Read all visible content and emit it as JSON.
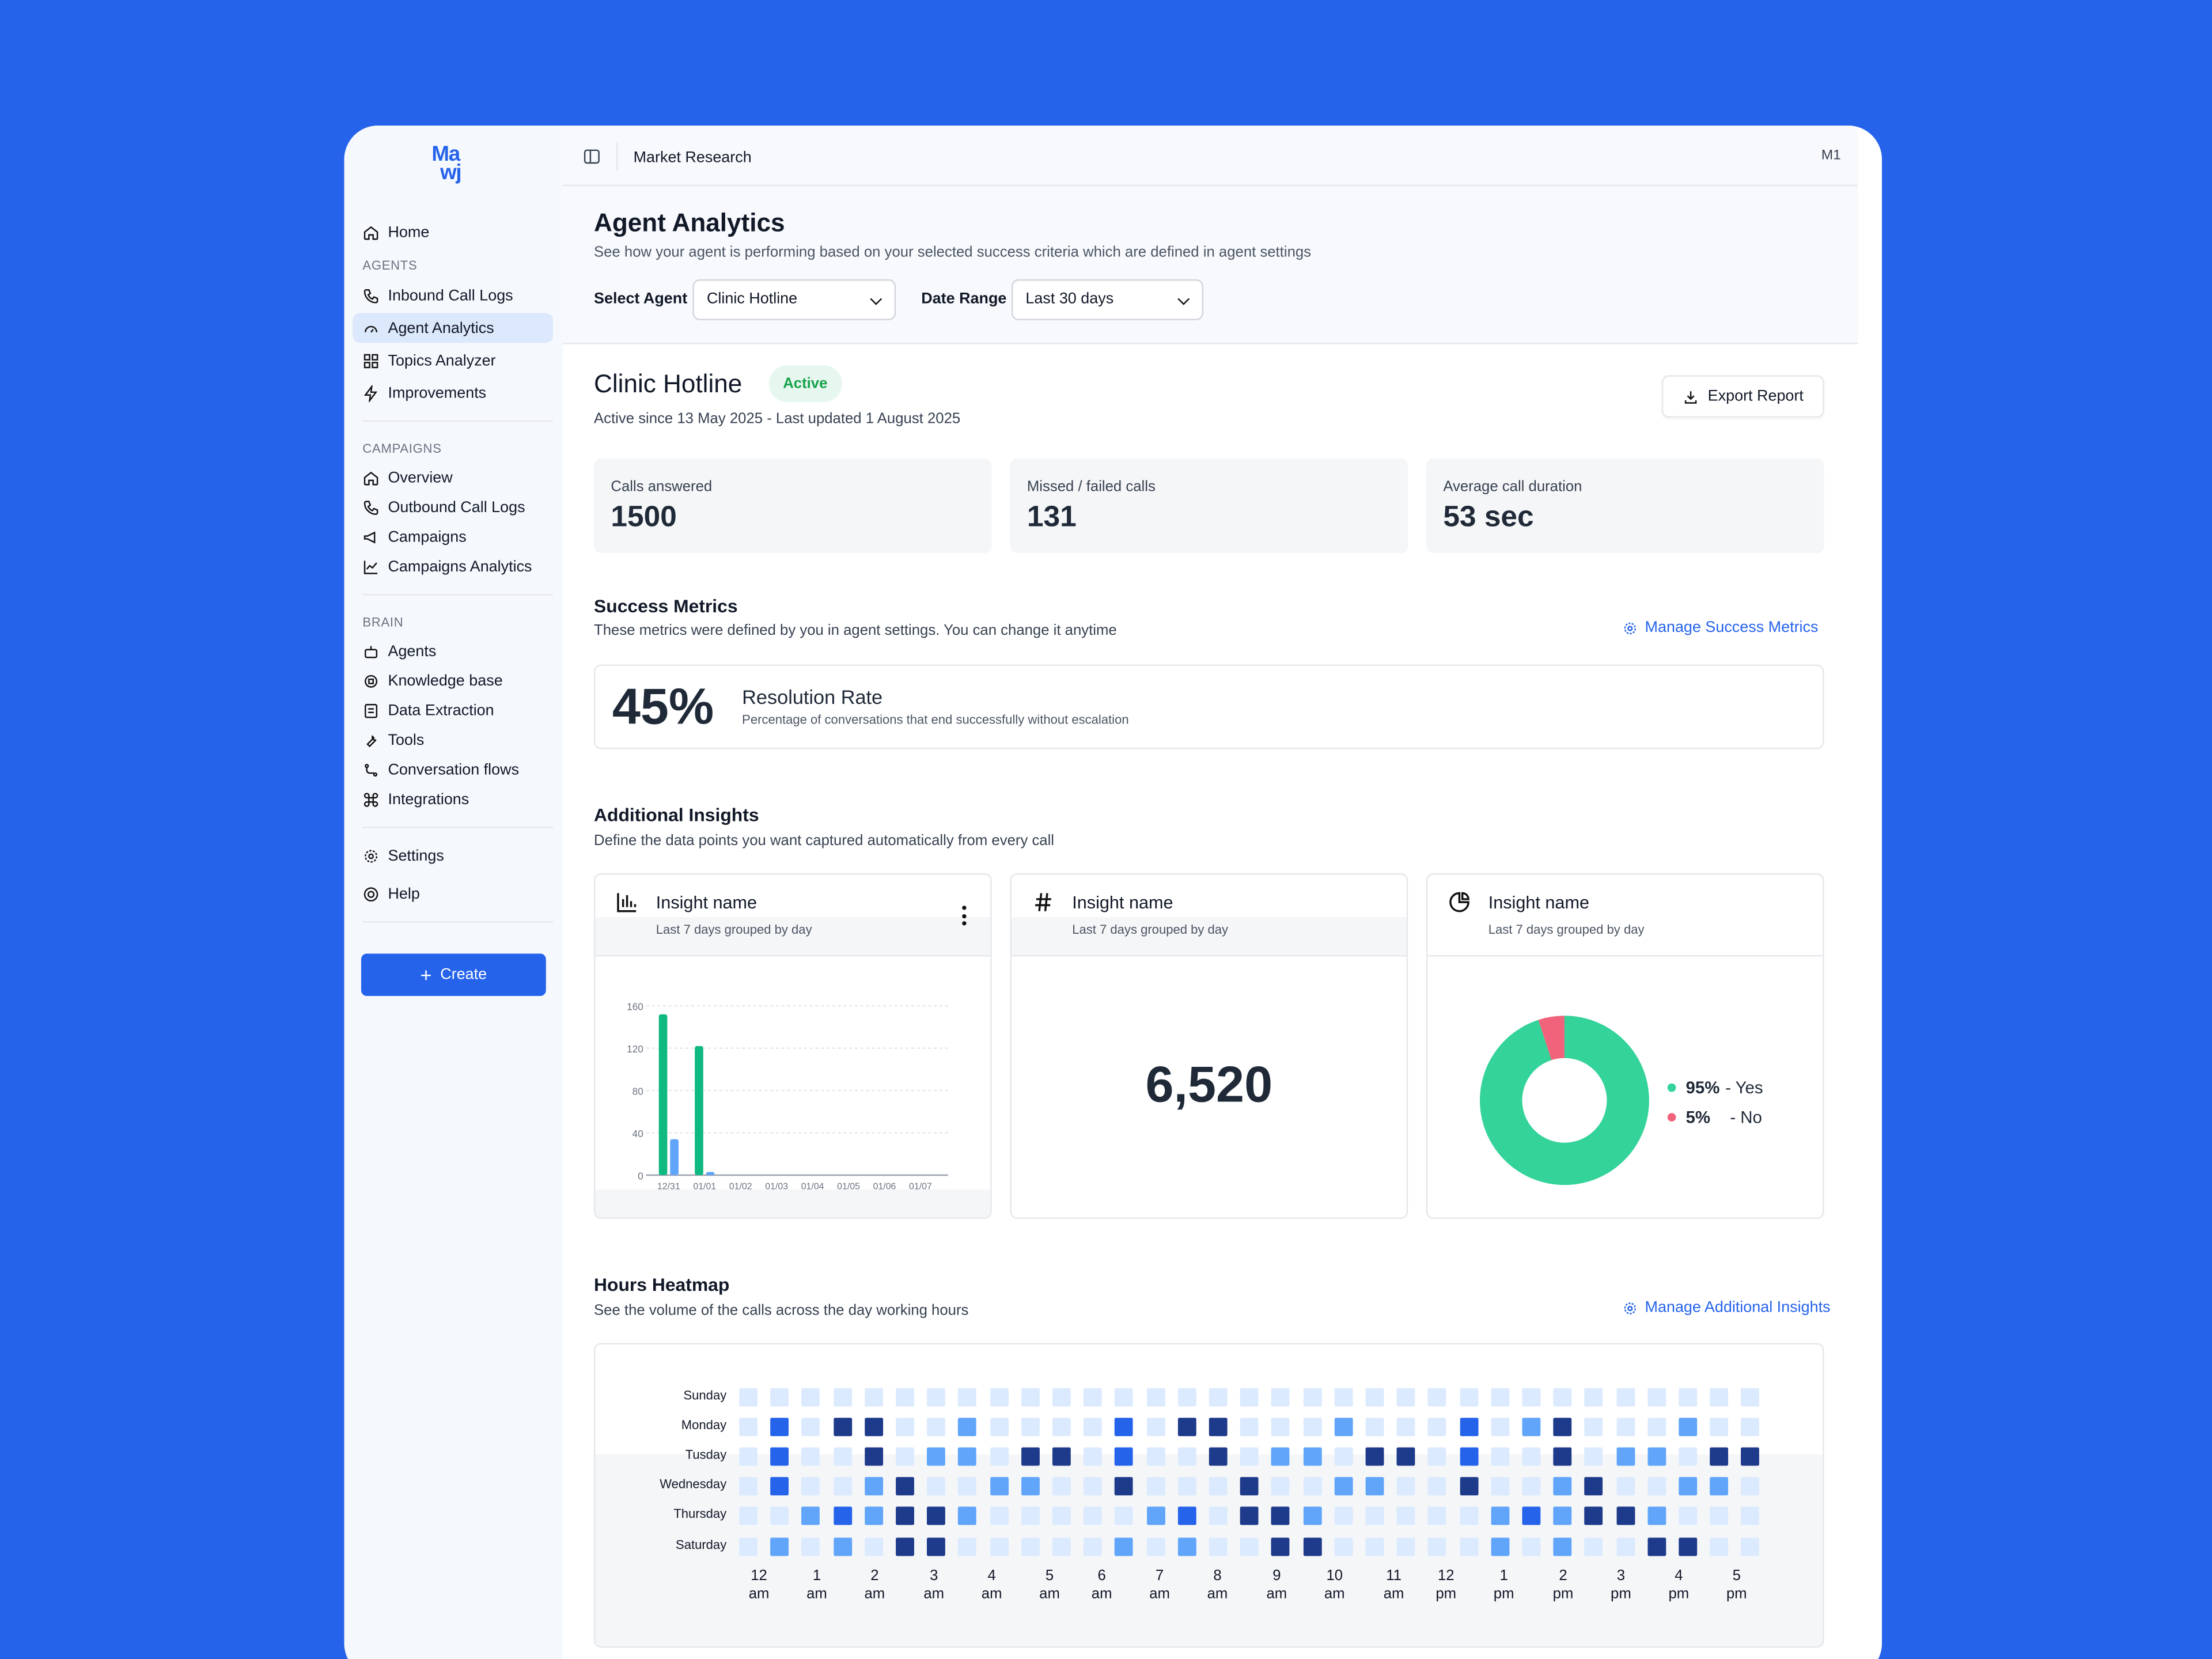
{
  "logo": {
    "line1": "Ma",
    "line2": "wj"
  },
  "sidebar": {
    "home": "Home",
    "agents_section": "AGENTS",
    "agents_items": [
      "Inbound Call Logs",
      "Agent Analytics",
      "Topics Analyzer",
      "Improvements"
    ],
    "campaigns_section": "CAMPAIGNS",
    "campaigns_items": [
      "Overview",
      "Outbound Call Logs",
      "Campaigns",
      "Campaigns Analytics"
    ],
    "brain_section": "BRAIN",
    "brain_items": [
      "Agents",
      "Knowledge base",
      "Data Extraction",
      "Tools",
      "Conversation flows",
      "Integrations"
    ],
    "settings": "Settings",
    "help": "Help",
    "create": "Create",
    "active_item": "Agent Analytics"
  },
  "topbar": {
    "breadcrumb": "Market Research",
    "avatar": "M1"
  },
  "header": {
    "title": "Agent Analytics",
    "subtitle": "See how your agent is performing based on your selected success criteria which are defined in agent settings",
    "select_agent_label": "Select Agent",
    "select_agent_value": "Clinic Hotline",
    "date_range_label": "Date Range",
    "date_range_value": "Last 30 days"
  },
  "agent": {
    "name": "Clinic Hotline",
    "status": "Active",
    "meta": "Active since 13 May 2025 - Last updated 1 August 2025",
    "export_label": "Export Report"
  },
  "stats": [
    {
      "label": "Calls answered",
      "value": "1500"
    },
    {
      "label": "Missed / failed calls",
      "value": "131"
    },
    {
      "label": "Average call duration",
      "value": "53 sec"
    }
  ],
  "success_metrics": {
    "title": "Success Metrics",
    "subtitle": "These metrics were defined by you in agent settings. You can change it anytime",
    "manage_label": "Manage Success Metrics",
    "metric_value": "45%",
    "metric_name": "Resolution Rate",
    "metric_desc": "Percentage of conversations that end successfully without escalation"
  },
  "insights": {
    "title": "Additional Insights",
    "subtitle": "Define the data points you want captured automatically from every call",
    "cards": [
      {
        "title": "Insight name",
        "subtitle": "Last 7 days grouped by day",
        "icon": "bar-chart-icon"
      },
      {
        "title": "Insight name",
        "subtitle": "Last 7 days grouped by day",
        "icon": "hash-icon",
        "value": "6,520"
      },
      {
        "title": "Insight name",
        "subtitle": "Last 7 days grouped by day",
        "icon": "pie-chart-icon"
      }
    ],
    "pie_legend": [
      {
        "pct": "95%",
        "label": "- Yes",
        "color": "#34d399"
      },
      {
        "pct": "5%",
        "label": "- No",
        "color": "#f0637a"
      }
    ]
  },
  "chart_data": [
    {
      "type": "bar",
      "categories": [
        "12/31",
        "01/01",
        "01/02",
        "01/03",
        "01/04",
        "01/05",
        "01/06",
        "01/07"
      ],
      "series": [
        {
          "values": [
            152,
            122,
            0,
            0,
            0,
            0,
            0,
            0
          ],
          "color": "#10b981"
        },
        {
          "values": [
            34,
            3,
            0,
            0,
            0,
            0,
            0,
            0
          ],
          "color": "#60a5fa"
        }
      ],
      "yticks": [
        "0",
        "40",
        "80",
        "120",
        "160"
      ],
      "ylim": [
        0,
        160
      ],
      "grid": true
    },
    {
      "type": "pie",
      "categories": [
        "Yes",
        "No"
      ],
      "values": [
        95,
        5
      ],
      "colors": [
        "#34d399",
        "#f0637a"
      ]
    },
    {
      "type": "heatmap",
      "title": "Hours Heatmap",
      "subtitle": "See the volume of the calls across the day working hours",
      "manage_label": "Manage Additional Insights",
      "rows": [
        "Sunday",
        "Monday",
        "Tusday",
        "Wednesday",
        "Thursday",
        "Saturday"
      ],
      "x_labels": [
        [
          "12",
          "am"
        ],
        [
          "1",
          "am"
        ],
        [
          "2",
          "am"
        ],
        [
          "3",
          "am"
        ],
        [
          "4",
          "am"
        ],
        [
          "5",
          "am"
        ],
        [
          "6",
          "am"
        ],
        [
          "7",
          "am"
        ],
        [
          "8",
          "am"
        ],
        [
          "9",
          "am"
        ],
        [
          "10",
          "am"
        ],
        [
          "11",
          "am"
        ],
        [
          "12",
          "pm"
        ],
        [
          "1",
          "pm"
        ],
        [
          "2",
          "pm"
        ],
        [
          "3",
          "pm"
        ],
        [
          "4",
          "pm"
        ],
        [
          "5",
          "pm"
        ]
      ],
      "levels": [
        [
          0,
          0,
          0,
          0,
          0,
          0,
          0,
          0,
          0,
          0,
          0,
          0,
          0,
          0,
          0,
          0,
          0,
          0,
          0,
          0,
          0,
          0,
          0,
          0,
          0,
          0,
          0,
          0,
          0,
          0,
          0,
          0,
          0
        ],
        [
          0,
          2,
          0,
          3,
          3,
          0,
          0,
          1,
          0,
          0,
          0,
          0,
          2,
          0,
          3,
          3,
          0,
          0,
          0,
          1,
          0,
          0,
          0,
          2,
          0,
          1,
          3,
          0,
          0,
          0,
          1,
          0,
          0
        ],
        [
          0,
          2,
          0,
          0,
          3,
          0,
          1,
          1,
          0,
          3,
          3,
          0,
          2,
          0,
          0,
          3,
          0,
          1,
          1,
          0,
          3,
          3,
          0,
          2,
          0,
          0,
          3,
          0,
          1,
          1,
          0,
          3,
          3
        ],
        [
          0,
          2,
          0,
          0,
          1,
          3,
          0,
          0,
          1,
          1,
          0,
          0,
          3,
          0,
          0,
          0,
          3,
          0,
          0,
          1,
          1,
          0,
          0,
          3,
          0,
          0,
          1,
          3,
          0,
          0,
          1,
          1,
          0
        ],
        [
          0,
          0,
          1,
          2,
          1,
          3,
          3,
          1,
          0,
          0,
          0,
          0,
          0,
          1,
          2,
          0,
          3,
          3,
          1,
          0,
          0,
          0,
          0,
          0,
          1,
          2,
          1,
          3,
          3,
          1,
          0,
          0,
          0
        ],
        [
          0,
          1,
          0,
          1,
          0,
          3,
          3,
          0,
          0,
          0,
          0,
          0,
          1,
          0,
          1,
          0,
          0,
          3,
          3,
          0,
          0,
          0,
          0,
          0,
          1,
          0,
          1,
          0,
          0,
          3,
          3,
          0,
          0
        ]
      ],
      "level_colors": [
        "#dbeafe",
        "#60a5fa",
        "#2563eb",
        "#1e3a8a"
      ]
    }
  ]
}
